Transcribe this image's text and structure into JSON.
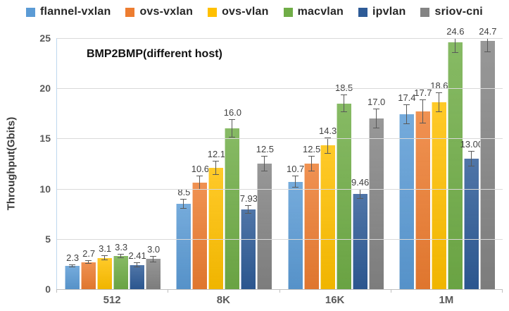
{
  "legend": {
    "items": [
      {
        "label": "flannel-vxlan",
        "color": "#5B9BD5"
      },
      {
        "label": "ovs-vxlan",
        "color": "#ED7D31"
      },
      {
        "label": "ovs-vlan",
        "color": "#FFC000"
      },
      {
        "label": "macvlan",
        "color": "#70AD47"
      },
      {
        "label": "ipvlan",
        "color": "#2E5B97"
      },
      {
        "label": "sriov-cni",
        "color": "#848484"
      }
    ]
  },
  "chart": {
    "inner_title": "BMP2BMP(different host)",
    "ylabel": "Throughput(Gbits)"
  },
  "chart_data": {
    "type": "bar",
    "title": "BMP2BMP(different host)",
    "xlabel": "",
    "ylabel": "Throughput(Gbits)",
    "categories": [
      "512",
      "8K",
      "16K",
      "1M"
    ],
    "series": [
      {
        "name": "flannel-vxlan",
        "color": "#5B9BD5",
        "values": [
          2.3,
          8.5,
          10.7,
          17.4
        ],
        "labels": [
          "2.3",
          "8.5",
          "10.7",
          "17.4"
        ],
        "errors": [
          0.15,
          0.5,
          0.6,
          1.0
        ]
      },
      {
        "name": "ovs-vxlan",
        "color": "#ED7D31",
        "values": [
          2.7,
          10.6,
          12.5,
          17.7
        ],
        "labels": [
          "2.7",
          "10.6",
          "12.5",
          "17.7"
        ],
        "errors": [
          0.2,
          0.7,
          0.8,
          1.2
        ]
      },
      {
        "name": "ovs-vlan",
        "color": "#FFC000",
        "values": [
          3.1,
          12.1,
          14.3,
          18.6
        ],
        "labels": [
          "3.1",
          "12.1",
          "14.3",
          "18.6"
        ],
        "errors": [
          0.25,
          0.7,
          0.8,
          1.0
        ]
      },
      {
        "name": "macvlan",
        "color": "#70AD47",
        "values": [
          3.3,
          16.0,
          18.5,
          24.6
        ],
        "labels": [
          "3.3",
          "16.0",
          "18.5",
          "24.6"
        ],
        "errors": [
          0.2,
          0.9,
          0.9,
          1.1
        ]
      },
      {
        "name": "ipvlan",
        "color": "#2E5B97",
        "values": [
          2.41,
          7.93,
          9.46,
          13.0
        ],
        "labels": [
          "2.41",
          "7.93",
          "9.46",
          "13.00"
        ],
        "errors": [
          0.25,
          0.4,
          0.5,
          0.8
        ]
      },
      {
        "name": "sriov-cni",
        "color": "#848484",
        "values": [
          3.0,
          12.5,
          17.0,
          24.7
        ],
        "labels": [
          "3.0",
          "12.5",
          "17.0",
          "24.7"
        ],
        "errors": [
          0.3,
          0.8,
          1.0,
          1.1
        ]
      }
    ],
    "ylim": [
      0,
      25
    ],
    "yticks": [
      0,
      5,
      10,
      15,
      20,
      25
    ],
    "grid": true,
    "error_bars": true,
    "legend_position": "top"
  }
}
